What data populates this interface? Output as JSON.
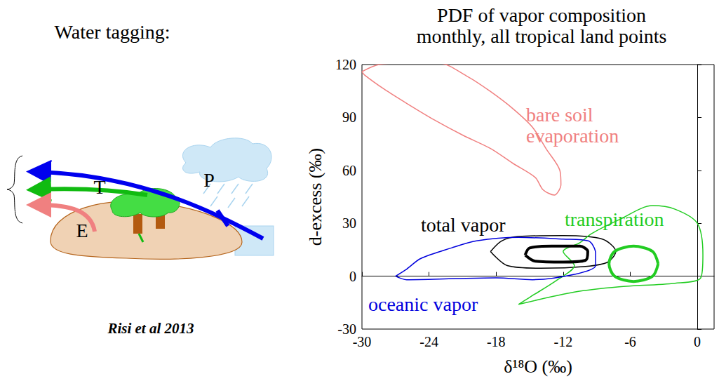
{
  "diagram": {
    "title": "Water tagging:",
    "labels": [
      "P",
      "T",
      "E"
    ],
    "citation": "Risi et al 2013"
  },
  "chart_data": {
    "type": "contour",
    "title": "PDF of vapor composition",
    "subtitle": "monthly, all tropical land points",
    "x_label": "δ¹⁸O (‰)",
    "y_label": "d-excess (‰)",
    "xlim": [
      -30,
      1.5
    ],
    "xticks": [
      -30,
      -24,
      -18,
      -12,
      -6,
      0
    ],
    "ylim": [
      -30,
      120
    ],
    "yticks": [
      -30,
      0,
      30,
      60,
      90,
      120
    ],
    "grid": false,
    "series": [
      {
        "name": "bare soil evaporation",
        "color": "#f08080",
        "contours": [
          {
            "x": [
              -30,
              -28.5,
              -26,
              -23.2,
              -20.5,
              -18.5,
              -16.5,
              -14.75,
              -13.5,
              -12.3,
              -12.2,
              -12.8,
              -13.8,
              -14.5,
              -16.5,
              -18.5,
              -21,
              -23.5,
              -26,
              -28,
              -29.75,
              -30
            ],
            "y": [
              116,
              120,
              121,
              121,
              113,
              104.7,
              95,
              84.5,
              72,
              60,
              52,
              46,
              49,
              56,
              64,
              72.4,
              80,
              88.5,
              98,
              106,
              114,
              116
            ]
          }
        ]
      },
      {
        "name": "total vapor",
        "color": "#000000",
        "contours": [
          {
            "x": [
              -18.5,
              -17.5,
              -16,
              -12,
              -8.5,
              -7.3,
              -8,
              -10,
              -14,
              -17,
              -18.5
            ],
            "y": [
              14,
              20,
              22.5,
              23,
              21,
              14,
              8,
              5.5,
              4.5,
              6,
              14
            ]
          },
          {
            "x": [
              -15.4,
              -15,
              -13,
              -10.5,
              -9.8,
              -10,
              -12,
              -14.5,
              -15.4
            ],
            "y": [
              12,
              16,
              17,
              17,
              14,
              9,
              8,
              8.5,
              12
            ]
          }
        ]
      },
      {
        "name": "transpiration",
        "color": "#22cc22",
        "contours": [
          {
            "x": [
              -16,
              -11,
              -7,
              -2,
              0.3,
              0.5,
              0,
              -2,
              -4,
              -7,
              -9.5,
              -10.5,
              -12,
              -11,
              -12.5,
              -15,
              -16
            ],
            "y": [
              -16,
              -9,
              -6,
              -4,
              -1,
              12,
              30,
              38,
              40,
              32,
              24,
              19,
              14,
              6,
              -2,
              -12,
              -16
            ]
          },
          {
            "x": [
              -3.5,
              -4,
              -5.7,
              -7.4,
              -7.9,
              -7.4,
              -5.7,
              -4,
              -3.5
            ],
            "y": [
              7,
              14,
              17,
              14,
              7,
              0,
              -3,
              0,
              7
            ]
          }
        ]
      },
      {
        "name": "oceanic vapor",
        "color": "#0000dd",
        "contours": [
          {
            "x": [
              -27,
              -26,
              -24.75,
              -22,
              -19.75,
              -16,
              -12,
              -9.75,
              -9.1,
              -9.1,
              -11,
              -14.75,
              -18,
              -21.6,
              -26,
              -27
            ],
            "y": [
              0,
              4,
              10,
              16,
              20,
              22,
              21,
              20,
              13,
              6,
              1,
              -2,
              -1,
              -1.4,
              -2,
              0
            ]
          }
        ]
      }
    ]
  }
}
